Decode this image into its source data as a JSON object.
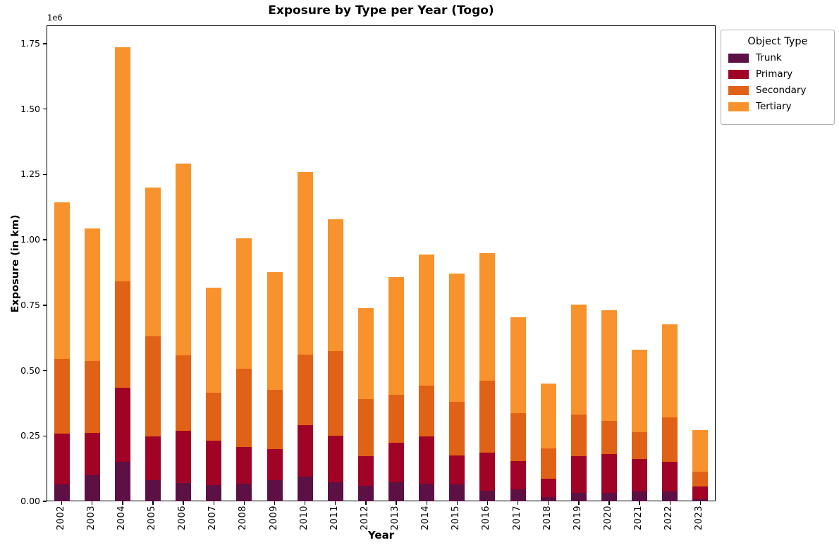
{
  "title": "Exposure by Type per Year (Togo)",
  "offset_text": "1e6",
  "xlabel": "Year",
  "ylabel": "Exposure (in km)",
  "legend": {
    "title": "Object Type",
    "items": [
      {
        "label": "Trunk",
        "color": "#5c1044"
      },
      {
        "label": "Primary",
        "color": "#a00326"
      },
      {
        "label": "Secondary",
        "color": "#e06216"
      },
      {
        "label": "Tertiary",
        "color": "#f8922c"
      }
    ]
  },
  "chart_data": {
    "type": "bar",
    "stacked": true,
    "title": "Exposure by Type per Year (Togo)",
    "xlabel": "Year",
    "ylabel": "Exposure (in km)",
    "unit_multiplier_label": "1e6",
    "legend_position": "upper right, outside plot",
    "grid": false,
    "categories": [
      "2002",
      "2003",
      "2004",
      "2005",
      "2006",
      "2007",
      "2008",
      "2009",
      "2010",
      "2011",
      "2012",
      "2013",
      "2014",
      "2015",
      "2016",
      "2017",
      "2018",
      "2019",
      "2020",
      "2021",
      "2022",
      "2023"
    ],
    "series": [
      {
        "name": "Trunk",
        "color": "#5c1044",
        "values": [
          65000,
          100000,
          150000,
          82000,
          70000,
          62000,
          68000,
          81000,
          95000,
          73000,
          60000,
          72000,
          68000,
          64000,
          40000,
          45000,
          17000,
          33000,
          33000,
          38000,
          38000,
          7000
        ]
      },
      {
        "name": "Primary",
        "color": "#a00326",
        "values": [
          193000,
          162000,
          284000,
          166000,
          199000,
          171000,
          140000,
          119000,
          195000,
          179000,
          113000,
          153000,
          179000,
          112000,
          145000,
          110000,
          68000,
          139000,
          147000,
          124000,
          114000,
          49000
        ]
      },
      {
        "name": "Secondary",
        "color": "#e06216",
        "values": [
          288000,
          275000,
          406000,
          382000,
          288000,
          182000,
          298000,
          227000,
          270000,
          323000,
          217000,
          182000,
          195000,
          203000,
          277000,
          182000,
          117000,
          160000,
          127000,
          102000,
          169000,
          56000
        ]
      },
      {
        "name": "Tertiary",
        "color": "#f8922c",
        "values": [
          598000,
          506000,
          897000,
          570000,
          734000,
          401000,
          500000,
          450000,
          699000,
          503000,
          349000,
          450000,
          502000,
          492000,
          488000,
          368000,
          248000,
          420000,
          423000,
          317000,
          355000,
          161000
        ]
      }
    ],
    "totals": [
      1144000,
      1043000,
      1737000,
      1200000,
      1291000,
      816000,
      1006000,
      877000,
      1259000,
      1078000,
      739000,
      857000,
      944000,
      871000,
      950000,
      705000,
      450000,
      752000,
      730000,
      581000,
      676000,
      273000
    ],
    "ylim": [
      0,
      1820000
    ],
    "yticks": [
      0,
      250000,
      500000,
      750000,
      1000000,
      1250000,
      1500000,
      1750000
    ],
    "ytick_labels": [
      "0.00",
      "0.25",
      "0.50",
      "0.75",
      "1.00",
      "1.25",
      "1.50",
      "1.75"
    ]
  }
}
